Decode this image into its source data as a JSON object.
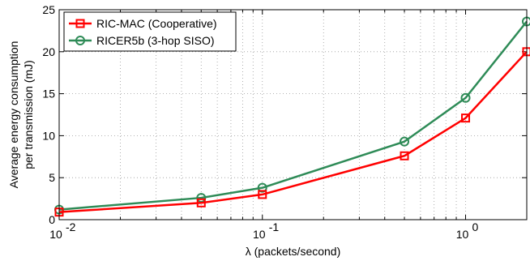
{
  "chart_data": {
    "type": "line",
    "xscale": "log",
    "xlim": [
      0.01,
      2
    ],
    "ylim": [
      0,
      25
    ],
    "grid": true,
    "legend_position": "top-left",
    "xlabel": "λ (packets/second)",
    "ylabel_lines": [
      "Average energy consumption",
      "per transmission (mJ)"
    ],
    "xticks": [
      {
        "value": 0.01,
        "base": "10",
        "exp": "-2"
      },
      {
        "value": 0.1,
        "base": "10",
        "exp": "-1"
      },
      {
        "value": 1,
        "base": "10",
        "exp": "0"
      }
    ],
    "yticks": [
      0,
      5,
      10,
      15,
      20,
      25
    ],
    "x": [
      0.01,
      0.05,
      0.1,
      0.5,
      1,
      2
    ],
    "series": [
      {
        "name": "RIC-MAC (Cooperative)",
        "color": "#ff0000",
        "marker": "square",
        "values": [
          0.9,
          2.0,
          3.0,
          7.6,
          12.1,
          20.0
        ]
      },
      {
        "name": "RICER5b (3-hop SISO)",
        "color": "#2e8b57",
        "marker": "circle",
        "values": [
          1.2,
          2.6,
          3.8,
          9.3,
          14.5,
          23.6
        ]
      }
    ]
  }
}
